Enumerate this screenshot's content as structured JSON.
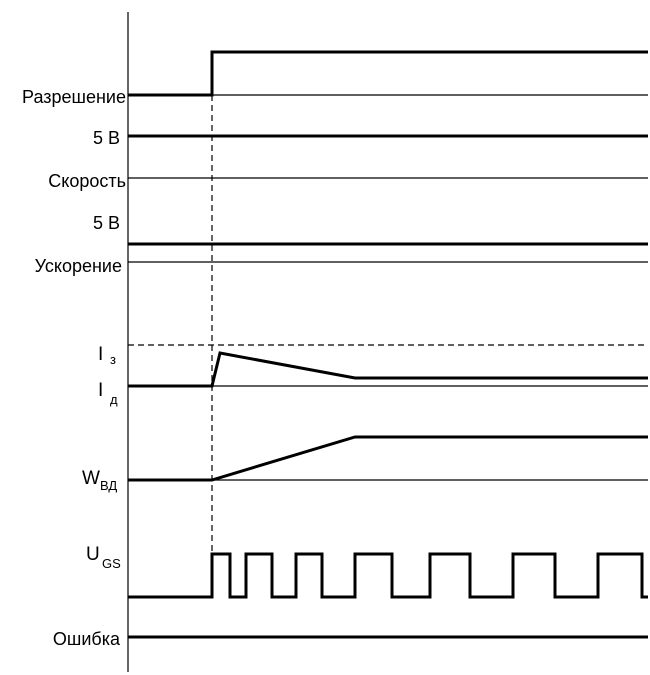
{
  "labels": {
    "enable": "Разрешение",
    "v5_a": "5 В",
    "speed": "Скорость",
    "v5_b": "5 В",
    "accel": "Ускорение",
    "i_set": "I",
    "i_set_sub": "з",
    "i_act": "I",
    "i_act_sub": "д",
    "w_vd": "W",
    "w_vd_sub": "ВД",
    "u_gs": "U",
    "u_gs_sub": "GS",
    "error": "Ошибка"
  }
}
